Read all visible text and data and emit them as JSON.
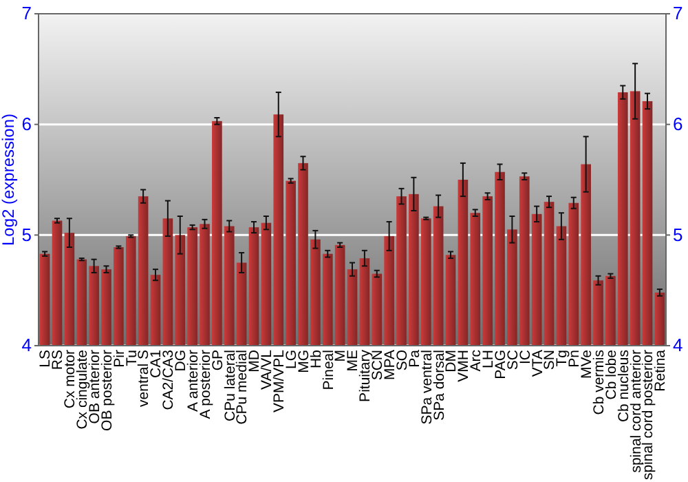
{
  "chart_data": {
    "type": "bar",
    "ylabel": "Log2 (expression)",
    "categories": [
      "LS",
      "RS",
      "Cx motor",
      "Cx cingulate",
      "OB anterior",
      "OB posterior",
      "Pir",
      "Tu",
      "ventral S",
      "CA1",
      "CA2/CA3",
      "DG",
      "A anterior",
      "A posterior",
      "GP",
      "CPu lateral",
      "CPu medial",
      "MD",
      "VA/VL",
      "VPM/VPL",
      "LG",
      "MG",
      "Hb",
      "Pineal",
      "M",
      "ME",
      "Pituitary",
      "SCN",
      "MPA",
      "SO",
      "Pa",
      "SPa ventral",
      "SPa dorsal",
      "DM",
      "VMH",
      "Arc",
      "LH",
      "PAG",
      "SC",
      "IC",
      "VTA",
      "SN",
      "Tg",
      "Pn",
      "MVe",
      "Cb vermis",
      "Cb lobe",
      "Cb nucleus",
      "spinal cord anterior",
      "spinal cord posterior",
      "Retina"
    ],
    "values": [
      4.83,
      5.13,
      5.02,
      4.78,
      4.72,
      4.69,
      4.89,
      4.99,
      5.35,
      4.64,
      5.15,
      5.0,
      5.07,
      5.1,
      6.03,
      5.08,
      4.75,
      5.07,
      5.11,
      6.09,
      5.49,
      5.65,
      4.96,
      4.83,
      4.91,
      4.69,
      4.79,
      4.65,
      4.99,
      5.35,
      5.37,
      5.15,
      5.26,
      4.82,
      5.5,
      5.2,
      5.35,
      5.57,
      5.05,
      5.53,
      5.19,
      5.3,
      5.08,
      5.29,
      5.64,
      4.59,
      4.63,
      6.29,
      6.3,
      6.21,
      4.48
    ],
    "errors": [
      0.02,
      0.02,
      0.13,
      0.01,
      0.06,
      0.03,
      0.01,
      0.01,
      0.06,
      0.05,
      0.16,
      0.17,
      0.02,
      0.04,
      0.03,
      0.05,
      0.09,
      0.05,
      0.06,
      0.2,
      0.02,
      0.06,
      0.08,
      0.03,
      0.02,
      0.06,
      0.07,
      0.03,
      0.13,
      0.07,
      0.15,
      0.01,
      0.1,
      0.03,
      0.15,
      0.03,
      0.03,
      0.07,
      0.12,
      0.03,
      0.07,
      0.05,
      0.12,
      0.05,
      0.25,
      0.04,
      0.02,
      0.06,
      0.25,
      0.07,
      0.03
    ],
    "color": "#b03232",
    "ylim": [
      4,
      7
    ],
    "yticks": [
      4,
      5,
      6,
      7
    ],
    "y2lim": [
      4,
      7
    ],
    "y2ticks": [
      4,
      5,
      6,
      7
    ],
    "grid": "y"
  }
}
